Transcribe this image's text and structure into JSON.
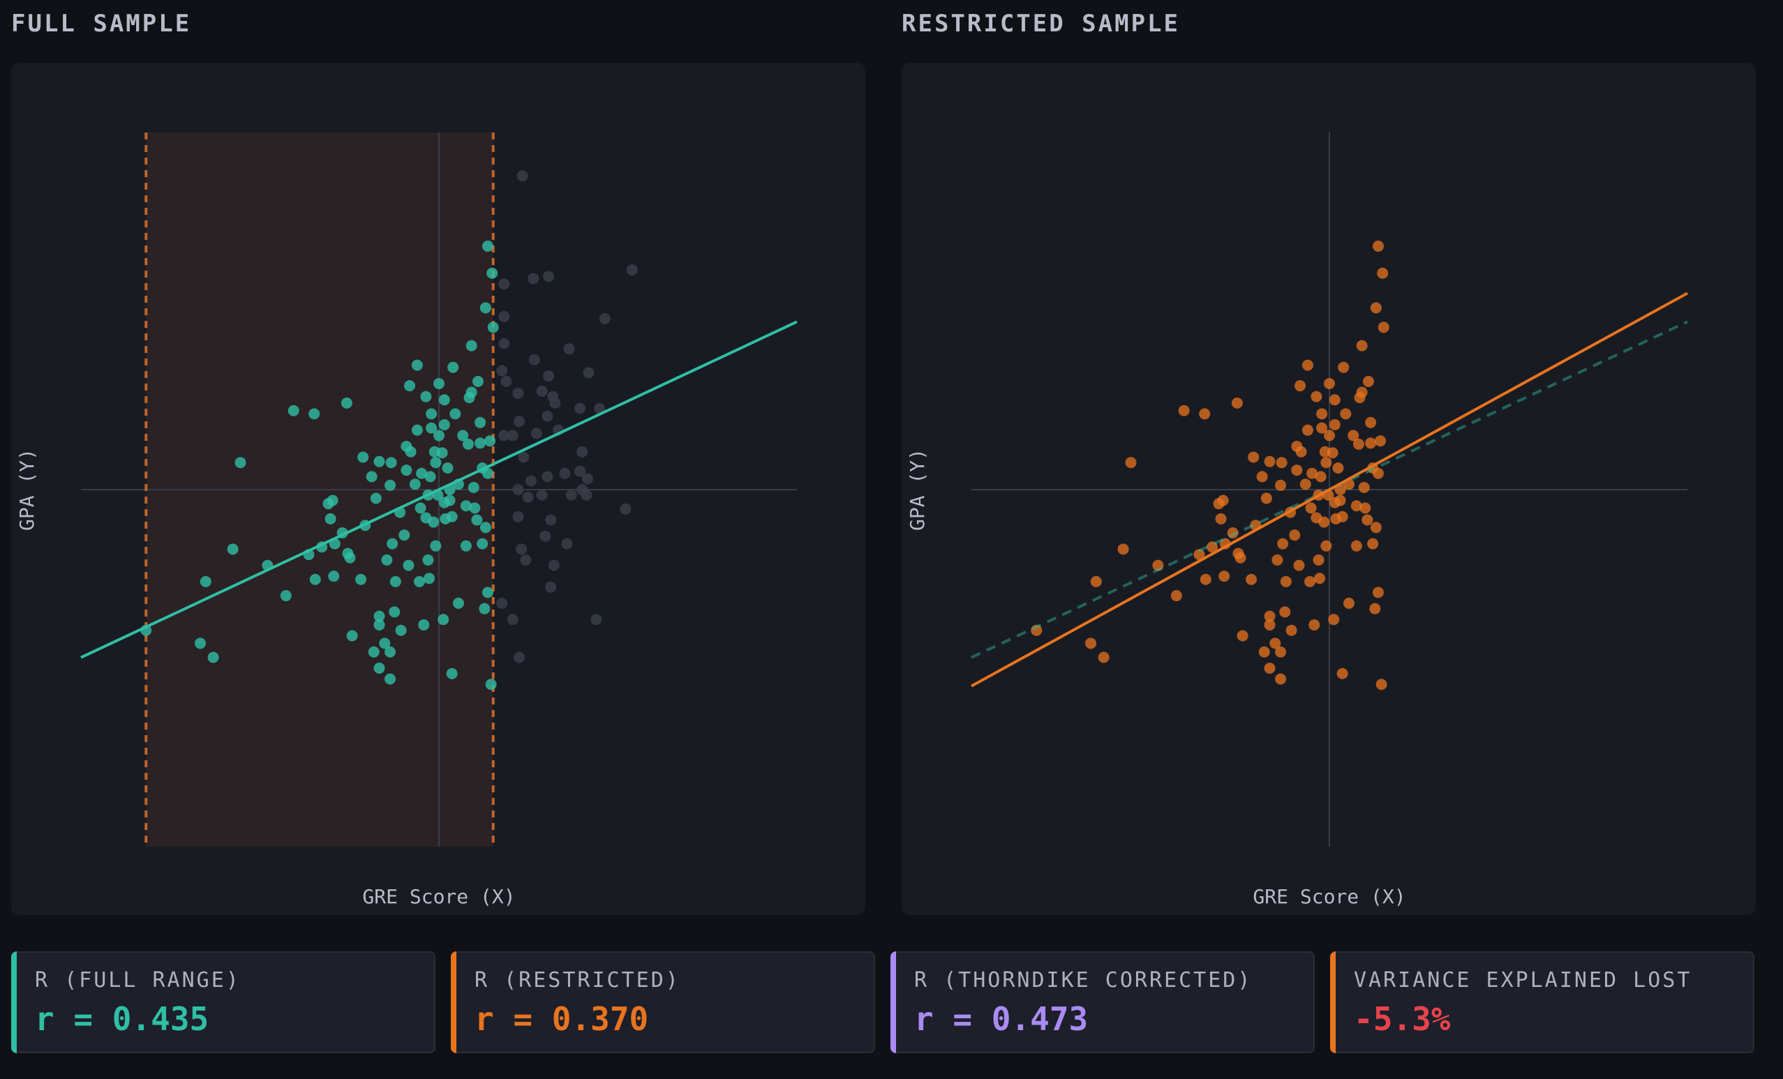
{
  "panels": {
    "full_title": "FULL SAMPLE",
    "restricted_title": "RESTRICTED SAMPLE"
  },
  "colors": {
    "full": "#2fbfa5",
    "restricted": "#e8741f",
    "corrected": "#a98bf2",
    "lost": "#e8434b",
    "excluded": "#3a3d48",
    "band_fill": "#2a2224",
    "axis": "#3a3d48"
  },
  "stats": [
    {
      "label": "R (FULL RANGE)",
      "value": "r = 0.435",
      "color": "#2fbfa5"
    },
    {
      "label": "R (RESTRICTED)",
      "value": "r = 0.370",
      "color": "#e8741f"
    },
    {
      "label": "R (THORNDIKE CORRECTED)",
      "value": "r = 0.473",
      "color": "#a98bf2"
    },
    {
      "label": "VARIANCE EXPLAINED LOST",
      "value": "-5.3%",
      "color": "#e8434b",
      "bar_color": "#e8741f"
    }
  ],
  "chart_data": [
    {
      "type": "scatter",
      "title": "FULL SAMPLE",
      "xlabel": "GRE Score (X)",
      "ylabel": "GPA (Y)",
      "xlim": [
        -3.3,
        3.3
      ],
      "ylim": [
        -3.3,
        3.3
      ],
      "grid": false,
      "restriction_range": [
        -2.7,
        0.5
      ],
      "fit_line": {
        "slope": 0.47,
        "intercept": 0.0,
        "color": "#2fbfa5",
        "dashed": false
      },
      "points_selected": [
        [
          -2.7,
          -1.3
        ],
        [
          -2.15,
          -0.85
        ],
        [
          -2.2,
          -1.42
        ],
        [
          -2.08,
          -1.55
        ],
        [
          -1.83,
          0.25
        ],
        [
          -1.58,
          -0.7
        ],
        [
          -1.41,
          -0.98
        ],
        [
          -1.34,
          0.73
        ],
        [
          -1.15,
          0.7
        ],
        [
          -1.14,
          -0.83
        ],
        [
          -1.02,
          -0.13
        ],
        [
          -0.98,
          -0.1
        ],
        [
          -0.97,
          -0.8
        ],
        [
          -0.96,
          -0.5
        ],
        [
          -1.08,
          -0.53
        ],
        [
          -0.84,
          -0.59
        ],
        [
          -0.82,
          -0.63
        ],
        [
          -0.89,
          -0.4
        ],
        [
          -0.72,
          -0.83
        ],
        [
          -0.62,
          0.12
        ],
        [
          -0.55,
          0.26
        ],
        [
          -0.68,
          -0.33
        ],
        [
          -0.58,
          -0.08
        ],
        [
          -0.45,
          0.04
        ],
        [
          -0.44,
          0.25
        ],
        [
          -0.3,
          0.4
        ],
        [
          -0.4,
          -0.85
        ],
        [
          -0.41,
          -1.13
        ],
        [
          -0.55,
          -1.17
        ],
        [
          -0.55,
          -1.25
        ],
        [
          -0.45,
          -1.5
        ],
        [
          -0.5,
          -1.42
        ],
        [
          -0.55,
          -1.65
        ],
        [
          -0.45,
          -1.75
        ],
        [
          -0.48,
          -0.65
        ],
        [
          -0.43,
          -0.5
        ],
        [
          -0.36,
          -0.21
        ],
        [
          -0.3,
          0.18
        ],
        [
          -0.32,
          -0.42
        ],
        [
          -0.28,
          -0.7
        ],
        [
          -0.26,
          0.35
        ],
        [
          -0.22,
          0.05
        ],
        [
          -0.2,
          0.55
        ],
        [
          -0.16,
          0.15
        ],
        [
          -0.17,
          -0.17
        ],
        [
          -0.12,
          -0.26
        ],
        [
          -0.18,
          -0.85
        ],
        [
          -0.2,
          1.15
        ],
        [
          -0.27,
          0.96
        ],
        [
          -0.12,
          0.86
        ],
        [
          -0.07,
          0.7
        ],
        [
          -0.07,
          0.57
        ],
        [
          -0.04,
          0.35
        ],
        [
          -0.03,
          0.25
        ],
        [
          -0.08,
          0.12
        ],
        [
          -0.1,
          -0.05
        ],
        [
          -0.05,
          -0.3
        ],
        [
          -0.14,
          -1.25
        ],
        [
          -0.1,
          -0.65
        ],
        [
          -0.09,
          -0.82
        ],
        [
          -0.01,
          -0.05
        ],
        [
          0.0,
          0.5
        ],
        [
          0.05,
          0.83
        ],
        [
          0.05,
          0.6
        ],
        [
          0.03,
          0.34
        ],
        [
          0.08,
          0.2
        ],
        [
          0.06,
          -0.27
        ],
        [
          0.05,
          -0.12
        ],
        [
          0.1,
          -0.1
        ],
        [
          0.12,
          -0.25
        ],
        [
          0.13,
          1.13
        ],
        [
          0.1,
          0.0
        ],
        [
          0.18,
          0.05
        ],
        [
          0.22,
          0.5
        ],
        [
          0.27,
          0.42
        ],
        [
          0.3,
          1.33
        ],
        [
          0.3,
          0.9
        ],
        [
          0.32,
          0.02
        ],
        [
          0.33,
          -0.17
        ],
        [
          0.36,
          1.0
        ],
        [
          0.35,
          -0.28
        ],
        [
          0.38,
          0.62
        ],
        [
          0.4,
          0.2
        ],
        [
          0.45,
          0.15
        ],
        [
          0.43,
          1.68
        ],
        [
          0.45,
          -0.95
        ],
        [
          0.42,
          -1.1
        ],
        [
          0.45,
          2.25
        ],
        [
          0.49,
          2.0
        ],
        [
          0.5,
          1.5
        ],
        [
          0.47,
          0.45
        ],
        [
          0.48,
          -1.8
        ],
        [
          0.43,
          -0.35
        ],
        [
          0.25,
          -0.52
        ],
        [
          -1.9,
          -0.55
        ],
        [
          -1.2,
          -0.6
        ],
        [
          -1.0,
          -0.27
        ],
        [
          -0.6,
          -1.5
        ],
        [
          -0.8,
          -1.35
        ],
        [
          -0.35,
          -1.3
        ],
        [
          0.18,
          -1.05
        ],
        [
          0.28,
          0.85
        ],
        [
          0.12,
          -1.7
        ],
        [
          0.04,
          -1.2
        ],
        [
          0.0,
          0.98
        ],
        [
          -0.03,
          -0.52
        ],
        [
          0.25,
          -0.15
        ],
        [
          0.38,
          0.43
        ],
        [
          0.4,
          -0.5
        ],
        [
          -0.7,
          0.3
        ],
        [
          -0.85,
          0.8
        ],
        [
          0.15,
          0.7
        ]
      ],
      "points_excluded": [
        [
          0.77,
          2.9
        ],
        [
          0.6,
          1.9
        ],
        [
          0.87,
          1.95
        ],
        [
          1.01,
          1.97
        ],
        [
          1.78,
          2.03
        ],
        [
          1.53,
          1.58
        ],
        [
          0.88,
          1.2
        ],
        [
          1.2,
          1.3
        ],
        [
          1.01,
          1.05
        ],
        [
          0.95,
          0.91
        ],
        [
          1.38,
          1.08
        ],
        [
          1.07,
          0.8
        ],
        [
          0.6,
          1.35
        ],
        [
          0.62,
          1.0
        ],
        [
          0.73,
          0.89
        ],
        [
          1.0,
          0.68
        ],
        [
          1.05,
          0.86
        ],
        [
          1.3,
          0.75
        ],
        [
          1.32,
          0.35
        ],
        [
          1.16,
          0.15
        ],
        [
          0.74,
          0.63
        ],
        [
          0.78,
          0.3
        ],
        [
          0.73,
          0.0
        ],
        [
          0.73,
          -0.25
        ],
        [
          0.76,
          -0.55
        ],
        [
          0.85,
          0.08
        ],
        [
          1.0,
          0.12
        ],
        [
          1.22,
          -0.05
        ],
        [
          1.37,
          0.1
        ],
        [
          1.32,
          0.0
        ],
        [
          0.95,
          -0.05
        ],
        [
          0.82,
          -0.07
        ],
        [
          1.3,
          0.17
        ],
        [
          1.03,
          -0.28
        ],
        [
          0.98,
          -0.43
        ],
        [
          1.18,
          -0.5
        ],
        [
          0.8,
          -0.65
        ],
        [
          1.06,
          -0.7
        ],
        [
          1.48,
          0.75
        ],
        [
          1.36,
          -0.05
        ],
        [
          0.6,
          0.5
        ],
        [
          0.58,
          1.1
        ],
        [
          0.68,
          -1.2
        ],
        [
          1.03,
          -0.9
        ],
        [
          0.58,
          -1.05
        ],
        [
          1.72,
          -0.18
        ],
        [
          1.45,
          -1.2
        ],
        [
          0.74,
          -1.55
        ],
        [
          0.6,
          1.6
        ],
        [
          0.9,
          0.52
        ],
        [
          1.1,
          0.55
        ],
        [
          0.68,
          0.5
        ]
      ]
    },
    {
      "type": "scatter",
      "title": "RESTRICTED SAMPLE",
      "xlabel": "GRE Score (X)",
      "ylabel": "GPA (Y)",
      "xlim": [
        -3.3,
        3.3
      ],
      "ylim": [
        -3.3,
        3.3
      ],
      "grid": false,
      "fit_line": {
        "slope": 0.55,
        "intercept": 0.0,
        "color": "#e8741f",
        "dashed": false
      },
      "reference_line": {
        "slope": 0.47,
        "intercept": 0.0,
        "color": "#2fbfa5",
        "dashed": true
      }
    }
  ]
}
